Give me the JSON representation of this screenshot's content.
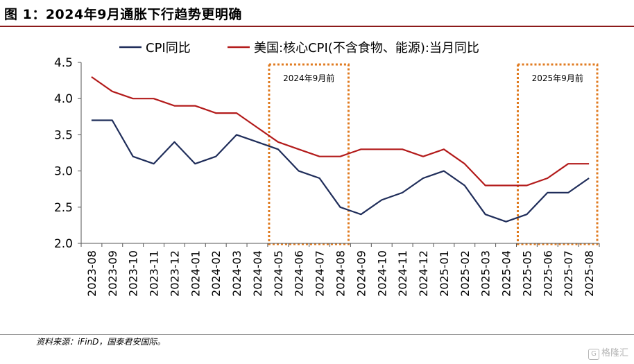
{
  "header": {
    "title": "图 1：2024年9月通胀下行趋势更明确"
  },
  "footer": {
    "source": "资料来源：iFinD，国泰君安国际。",
    "watermark": "格隆汇"
  },
  "chart_data": {
    "type": "line",
    "title": "",
    "xlabel": "",
    "ylabel": "",
    "ylim": [
      2.0,
      4.5
    ],
    "yticks": [
      2.0,
      2.5,
      3.0,
      3.5,
      4.0,
      4.5
    ],
    "ytick_labels": [
      "2.0",
      "2.5",
      "3.0",
      "3.5",
      "4.0",
      "4.5"
    ],
    "grid": false,
    "legend_position": "top",
    "categories": [
      "2023-08",
      "2023-09",
      "2023-10",
      "2023-11",
      "2023-12",
      "2024-01",
      "2024-02",
      "2024-03",
      "2024-04",
      "2024-05",
      "2024-06",
      "2024-07",
      "2024-08",
      "2024-09",
      "2024-10",
      "2024-11",
      "2024-12",
      "2025-01",
      "2025-02",
      "2025-03",
      "2025-04",
      "2025-05",
      "2025-06",
      "2025-07",
      "2025-08"
    ],
    "series": [
      {
        "name": "CPI同比",
        "color": "#1f2d5a",
        "values": [
          3.7,
          3.7,
          3.2,
          3.1,
          3.4,
          3.1,
          3.2,
          3.5,
          3.4,
          3.3,
          3.0,
          2.9,
          2.5,
          2.4,
          2.6,
          2.7,
          2.9,
          3.0,
          2.8,
          2.4,
          2.3,
          2.4,
          2.7,
          2.7,
          2.9
        ]
      },
      {
        "name": "美国:核心CPI(不含食物、能源):当月同比",
        "color": "#b31b1b",
        "values": [
          4.3,
          4.1,
          4.0,
          4.0,
          3.9,
          3.9,
          3.8,
          3.8,
          3.6,
          3.4,
          3.3,
          3.2,
          3.2,
          3.3,
          3.3,
          3.3,
          3.2,
          3.3,
          3.1,
          2.8,
          2.8,
          2.8,
          2.9,
          3.1,
          3.1
        ]
      }
    ],
    "annotations": [
      {
        "label": "2024年9月前",
        "from": "2024-05",
        "to": "2024-08",
        "color": "#e07b20"
      },
      {
        "label": "2025年9月前",
        "from": "2025-05",
        "to": "2025-08",
        "color": "#e07b20"
      }
    ]
  }
}
